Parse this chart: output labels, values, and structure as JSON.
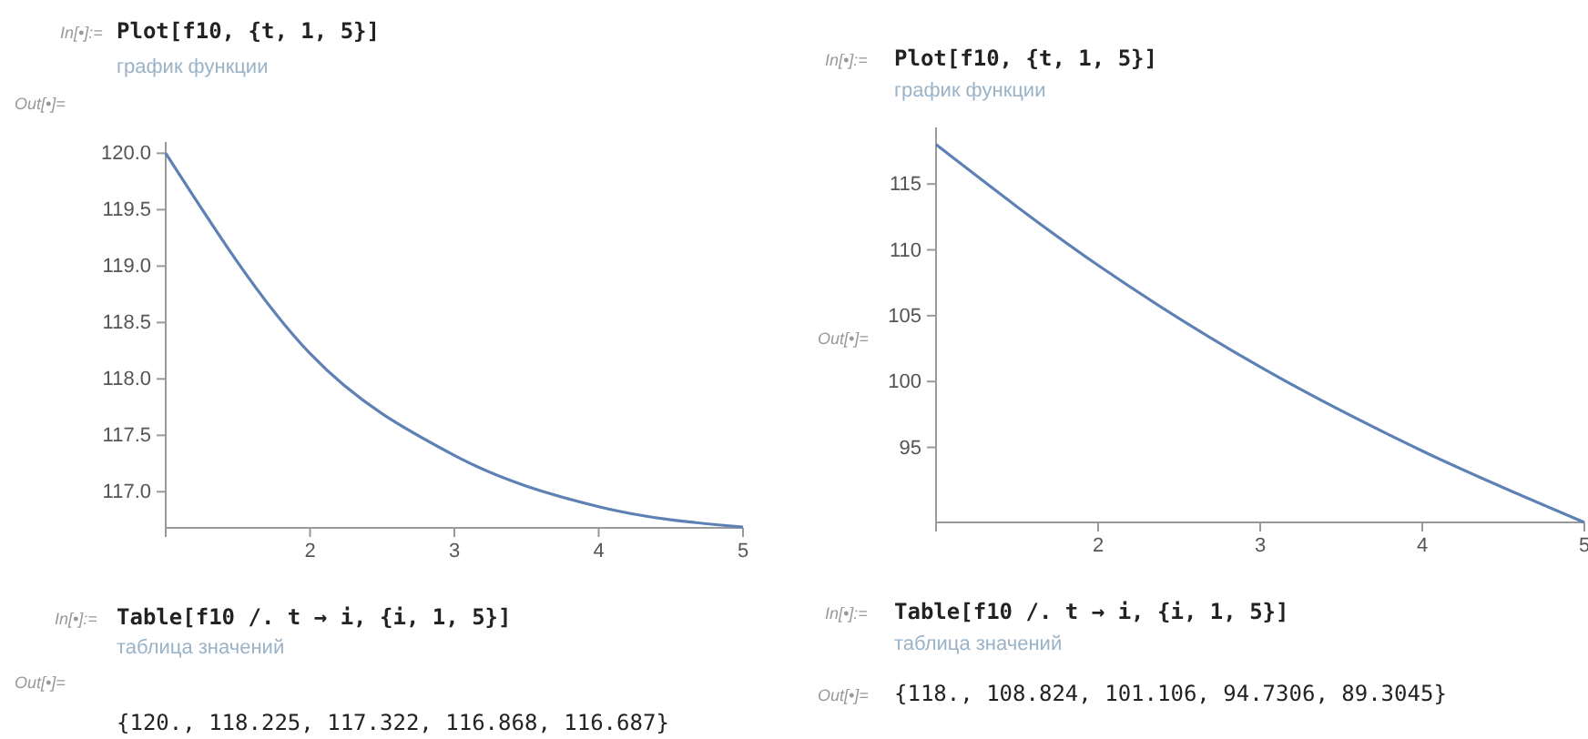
{
  "chart_data": [
    {
      "type": "line",
      "x": [
        1,
        2,
        3,
        4,
        5
      ],
      "series": [
        {
          "color": "#5e81b5",
          "values": [
            120,
            118.225,
            117.322,
            116.868,
            116.687
          ]
        }
      ],
      "xlim": [
        1,
        5
      ],
      "xticks": [
        {
          "value": 1,
          "label": null
        },
        2,
        3,
        4,
        5
      ],
      "ylim": [
        116.68,
        120.1
      ],
      "yticks": [
        {
          "value": 117,
          "label": "117.0"
        },
        117.5,
        {
          "value": 118,
          "label": "118.0"
        },
        118.5,
        {
          "value": 119,
          "label": "119.0"
        },
        119.5,
        {
          "value": 120,
          "label": "120.0"
        }
      ],
      "grid": false,
      "marker": "none",
      "line_style": "solid",
      "annotations": [
        "In[•]:=",
        "Plot[f10, {t, 1, 5}]",
        "график функции",
        "Out[•]=",
        "In[•]:=",
        "Table[f10 /. t → i, {i, 1, 5}]",
        "таблица значений",
        "Out[•]=",
        "{120., 118.225, 117.322, 116.868, 116.687}"
      ]
    },
    {
      "type": "line",
      "x": [
        1,
        2,
        3,
        4,
        5
      ],
      "series": [
        {
          "color": "#5e81b5",
          "values": [
            118,
            108.824,
            101.106,
            94.7306,
            89.3045
          ]
        }
      ],
      "xlim": [
        1,
        5
      ],
      "xticks": [
        {
          "value": 1,
          "label": null
        },
        2,
        3,
        4,
        5
      ],
      "ylim": [
        89.3,
        119.3
      ],
      "yticks": [
        95,
        100,
        105,
        110,
        115
      ],
      "grid": false,
      "marker": "none",
      "line_style": "solid",
      "annotations": [
        "In[•]:=",
        "Plot[f10, {t, 1, 5}]",
        "график функции",
        "Out[•]=",
        "In[•]:=",
        "Table[f10 /. t → i, {i, 1, 5}]",
        "таблица значений",
        "Out[•]=",
        "{118., 108.824, 101.106, 94.7306, 89.3045}"
      ]
    }
  ]
}
